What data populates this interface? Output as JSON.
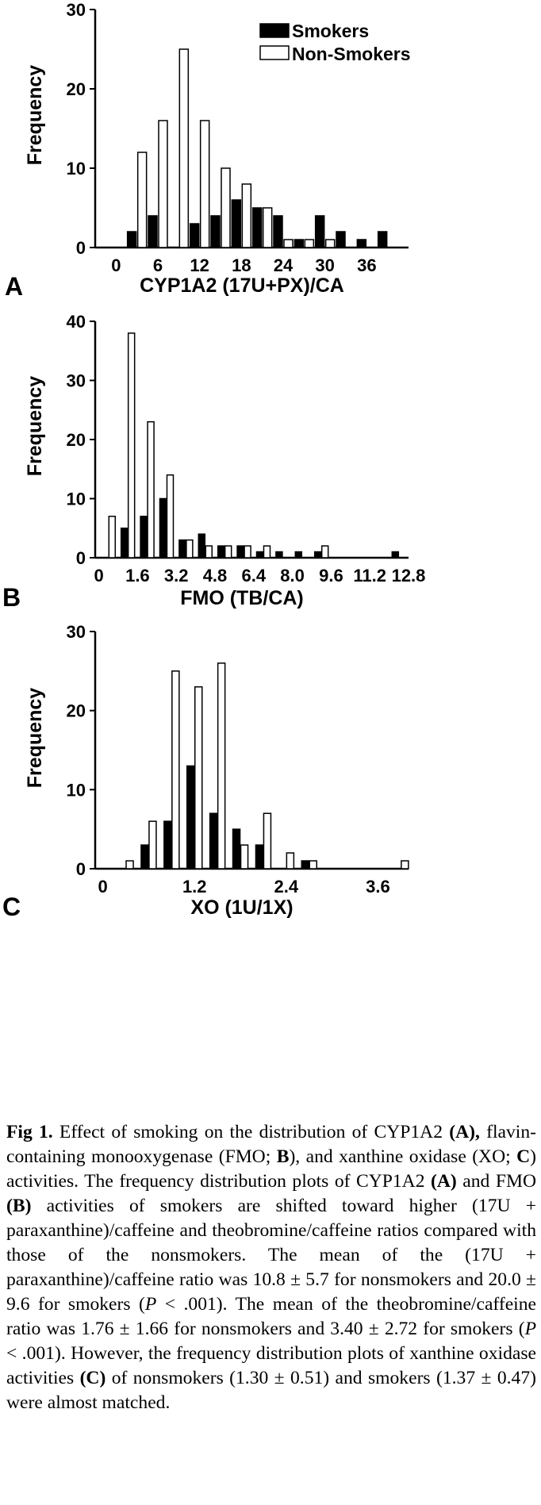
{
  "chart_data": [
    {
      "type": "bar",
      "panel_label": "A",
      "xlabel": "CYP1A2 (17U+PX)/CA",
      "ylabel": "Frequency",
      "xlim": [
        -3,
        42
      ],
      "ylim": [
        0,
        30
      ],
      "xticks": [
        0,
        6,
        12,
        18,
        24,
        30,
        36
      ],
      "yticks": [
        0,
        10,
        20,
        30
      ],
      "x": [
        3,
        6,
        9,
        12,
        15,
        18,
        21,
        24,
        27,
        30,
        33,
        36,
        39
      ],
      "series": [
        {
          "name": "Smokers",
          "values": [
            2,
            4,
            0,
            3,
            4,
            6,
            5,
            4,
            1,
            4,
            2,
            1,
            2
          ]
        },
        {
          "name": "Non-Smokers",
          "values": [
            12,
            16,
            25,
            16,
            10,
            8,
            5,
            1,
            1,
            1,
            0,
            0,
            0
          ]
        }
      ],
      "legend": {
        "position": "top-right",
        "entries": [
          "Smokers",
          "Non-Smokers"
        ]
      },
      "grid": false
    },
    {
      "type": "bar",
      "panel_label": "B",
      "xlabel": "FMO (TB/CA)",
      "ylabel": "Frequency",
      "xlim": [
        -0.15,
        12.8
      ],
      "ylim": [
        0,
        40
      ],
      "xticks": [
        0,
        1.6,
        3.2,
        4.8,
        6.4,
        8.0,
        9.6,
        11.2,
        12.8
      ],
      "xtick_labels": [
        "0",
        "1.6",
        "3.2",
        "4.8",
        "6.4",
        "8.0",
        "9.6",
        "11.2",
        "12.8"
      ],
      "yticks": [
        0,
        10,
        20,
        30,
        40
      ],
      "x": [
        0.4,
        1.2,
        2.0,
        2.8,
        3.6,
        4.4,
        5.2,
        6.0,
        6.8,
        7.6,
        8.4,
        9.2,
        10.0,
        10.8,
        11.6,
        12.4
      ],
      "series": [
        {
          "name": "Smokers",
          "values": [
            0,
            5,
            7,
            10,
            3,
            4,
            2,
            2,
            1,
            1,
            1,
            1,
            0,
            0,
            0,
            1
          ]
        },
        {
          "name": "Non-Smokers",
          "values": [
            7,
            38,
            23,
            14,
            3,
            2,
            2,
            2,
            2,
            0,
            0,
            2,
            0,
            0,
            0,
            0
          ]
        }
      ],
      "grid": false
    },
    {
      "type": "bar",
      "panel_label": "C",
      "xlabel": "XO (1U/1X)",
      "ylabel": "Frequency",
      "xlim": [
        -0.1,
        4.0
      ],
      "ylim": [
        0,
        30
      ],
      "xticks": [
        0,
        1.2,
        2.4,
        3.6
      ],
      "xtick_labels": [
        "0",
        "1.2",
        "2.4",
        "3.6"
      ],
      "yticks": [
        0,
        10,
        20,
        30
      ],
      "x": [
        0.3,
        0.6,
        0.9,
        1.2,
        1.5,
        1.8,
        2.1,
        2.4,
        2.7,
        3.0,
        3.3,
        3.6,
        3.9
      ],
      "series": [
        {
          "name": "Smokers",
          "values": [
            0,
            3,
            6,
            13,
            7,
            5,
            3,
            0,
            1,
            0,
            0,
            0,
            0
          ]
        },
        {
          "name": "Non-Smokers",
          "values": [
            1,
            6,
            25,
            23,
            26,
            3,
            7,
            2,
            1,
            0,
            0,
            0,
            1
          ]
        }
      ],
      "grid": false
    }
  ],
  "caption": {
    "label": "Fig 1.",
    "text_before": " Effect of smoking on the distribution of CYP1A2 ",
    "ref_a1": "(A),",
    "text_fmo": " flavin-containing monooxygenase (FMO; ",
    "ref_b1": "B",
    "text_xo": "), and xanthine oxidase (XO; ",
    "ref_c1": "C",
    "text_plots": ") activities. The frequency distribution plots of CYP1A2 ",
    "ref_a2": "(A)",
    "text_and": " and FMO ",
    "ref_b2": "(B)",
    "text_shift": " activities of smokers are shifted toward higher (17U + paraxanthine)/caffeine and theobromine/caffeine ratios compared with those of the nonsmokers. The mean of the (17U + paraxanthine)/caffeine ratio was 10.8 ± 5.7 for nonsmokers and 20.0 ± 9.6 for smokers (",
    "p1": "P",
    "text_p1": " < .001). The mean of the theobromine/caffeine ratio was 1.76 ± 1.66 for nonsmokers and 3.40 ± 2.72 for smokers (",
    "p2": "P",
    "text_p2": " < .001). However, the frequency distribution plots of xanthine oxidase activities ",
    "ref_c2": "(C)",
    "text_end": " of nonsmokers (1.30 ± 0.51) and smokers (1.37 ± 0.47) were almost matched."
  },
  "colors": {
    "smokers": "#000000",
    "non_smokers": "#ffffff",
    "axis": "#000000"
  }
}
